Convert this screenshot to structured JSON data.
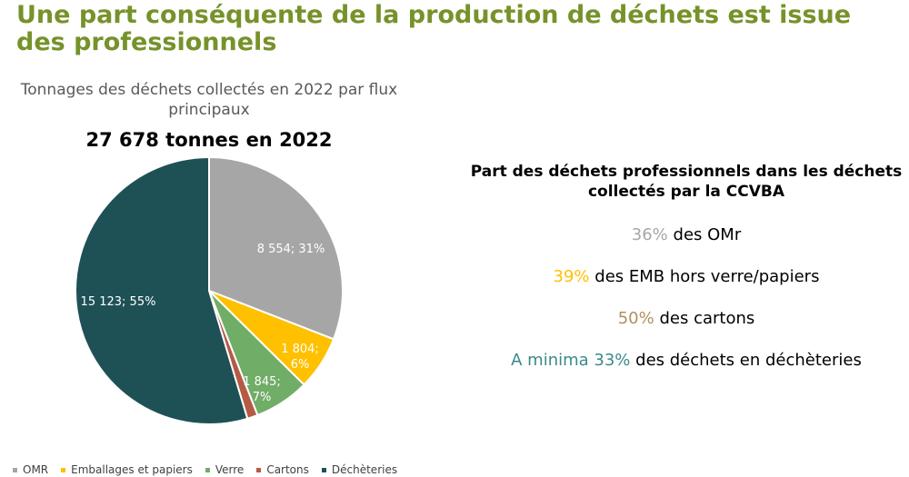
{
  "slide": {
    "title": "Une part conséquente de la production de déchets est issue des professionnels"
  },
  "chart_data": {
    "type": "pie",
    "title": "Tonnages des déchets collectés en 2022 par flux principaux",
    "total_label": "27 678 tonnes en 2022",
    "slices": [
      {
        "name": "OMR",
        "value": 8554,
        "percent": 31,
        "label": "8 554; 31%",
        "color": "#a6a6a6"
      },
      {
        "name": "Emballages et papiers",
        "value": 1804,
        "percent": 6,
        "label": "1 804; 6%",
        "color": "#ffc000"
      },
      {
        "name": "Verre",
        "value": 1845,
        "percent": 7,
        "label": "1 845; 7%",
        "color": "#70ad67"
      },
      {
        "name": "Cartons",
        "value": 352,
        "percent": 1,
        "label": "",
        "color": "#b55a45"
      },
      {
        "name": "Déchèteries",
        "value": 15123,
        "percent": 55,
        "label": "15 123; 55%",
        "color": "#1e5156"
      }
    ],
    "legend_position": "bottom"
  },
  "panel": {
    "heading": "Part des déchets professionnels dans les déchets collectés par la CCVBA",
    "stats": [
      {
        "highlight": "36%",
        "rest": " des OMr",
        "color": "#a6a6a6"
      },
      {
        "highlight": "39%",
        "rest": " des EMB hors verre/papiers",
        "color": "#ffc000"
      },
      {
        "highlight": "50%",
        "rest": " des cartons",
        "color": "#b08f5f"
      },
      {
        "highlight": "A minima 33%",
        "rest": " des déchets en déchèteries",
        "color": "#3a8a8a"
      }
    ]
  }
}
